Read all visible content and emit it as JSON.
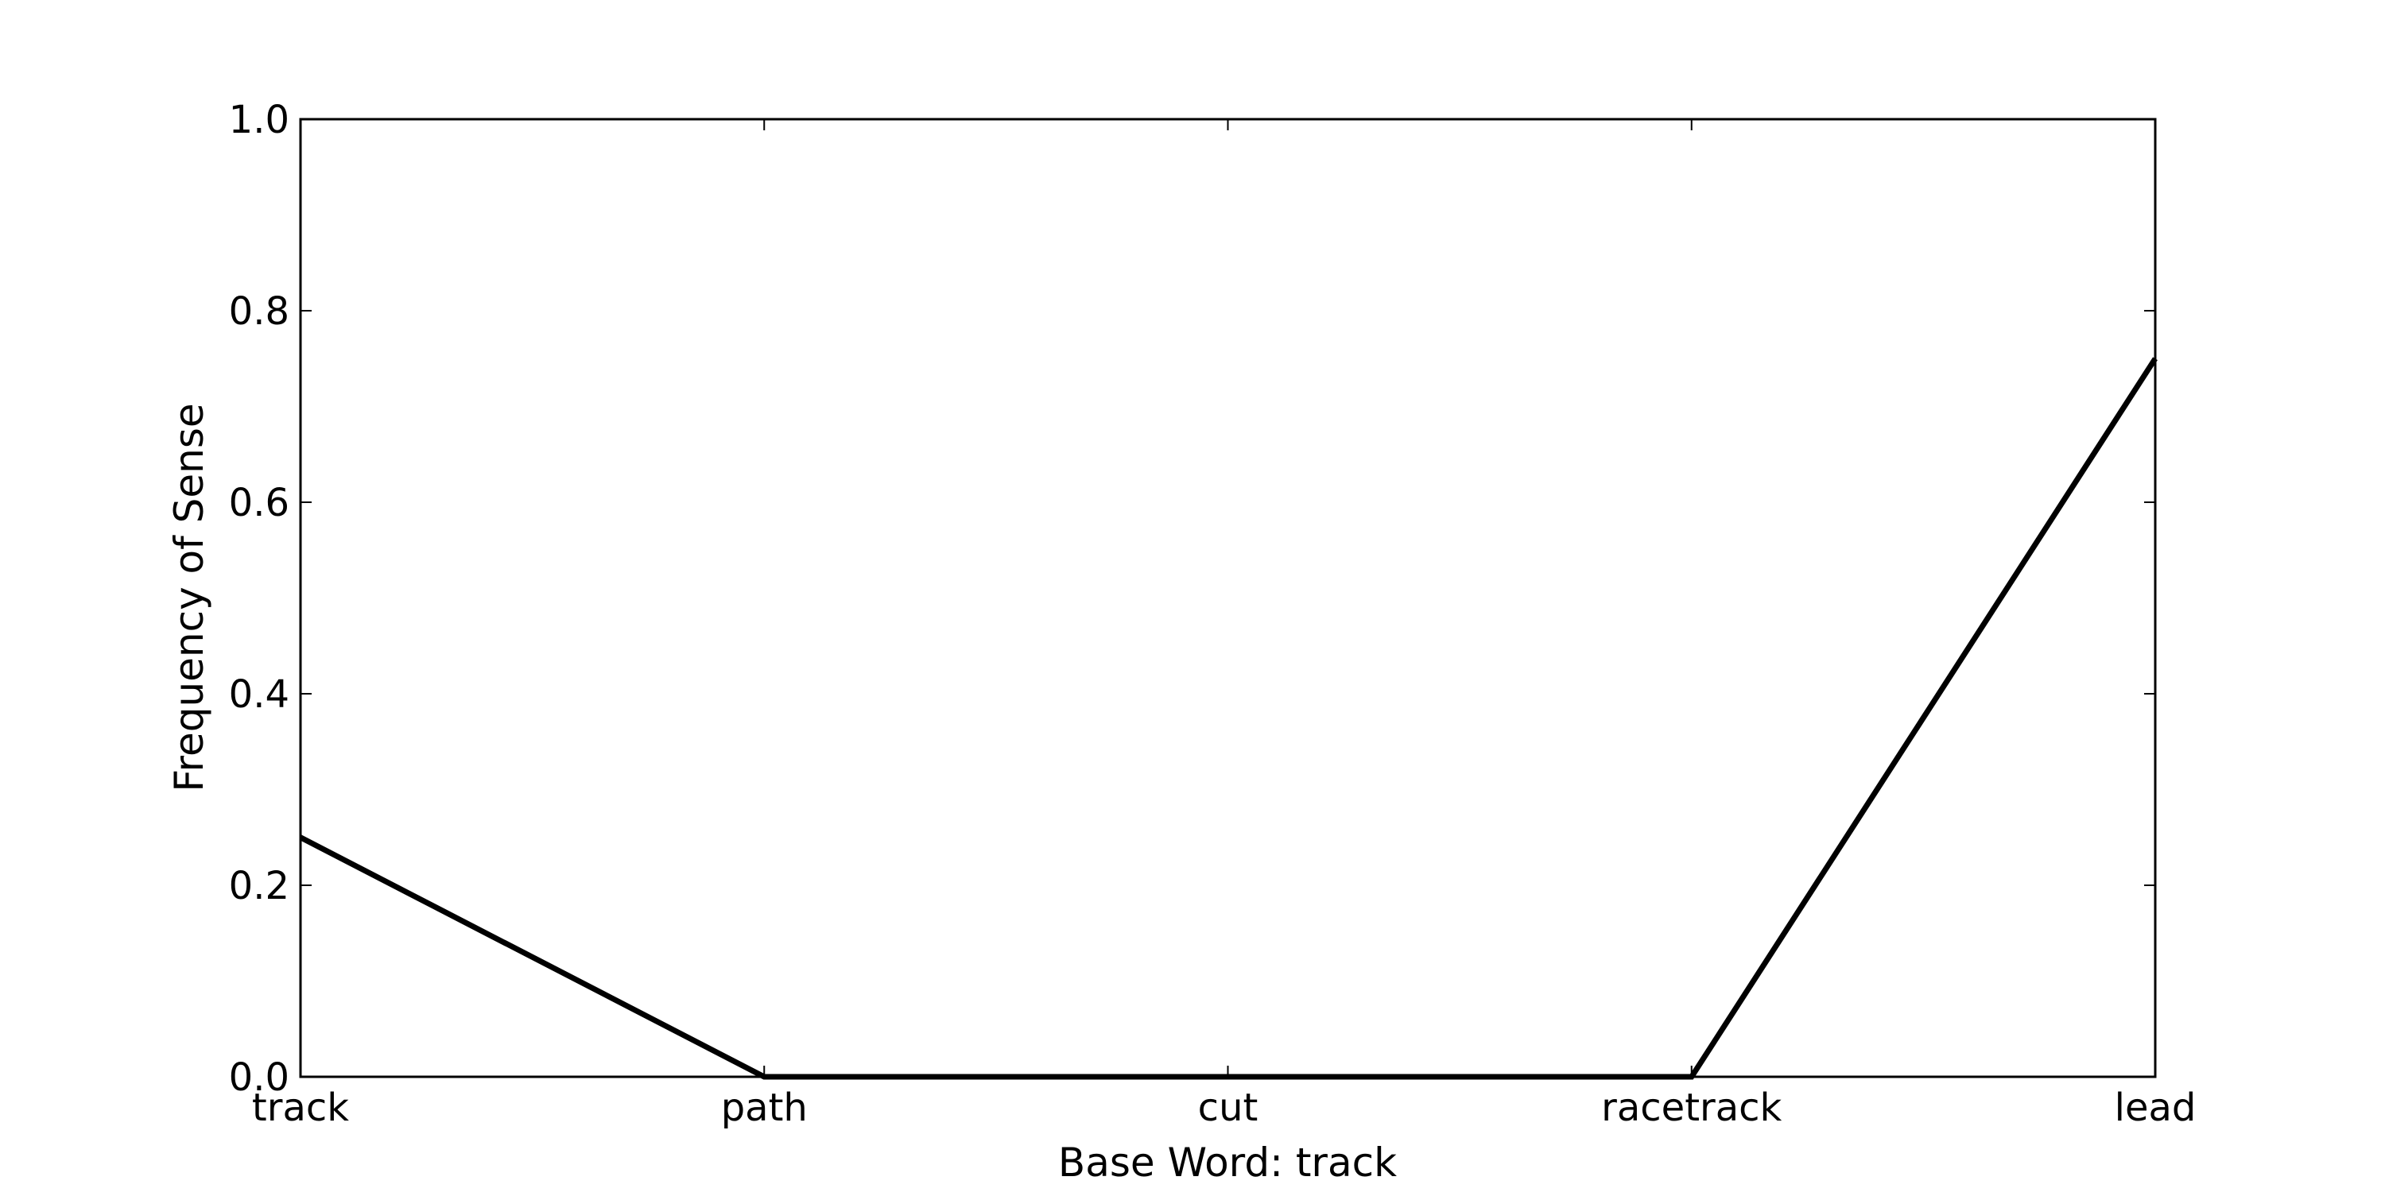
{
  "chart_data": {
    "type": "line",
    "categories": [
      "track",
      "path",
      "cut",
      "racetrack",
      "lead"
    ],
    "series": [
      {
        "values": [
          0.25,
          0.0,
          0.0,
          0.0,
          0.75
        ],
        "color": "#000000"
      }
    ],
    "xlabel": "Base Word: track",
    "ylabel": "Frequency of Sense",
    "ylim": [
      0.0,
      1.0
    ],
    "yticks": [
      "0.0",
      "0.2",
      "0.4",
      "0.6",
      "0.8",
      "1.0"
    ],
    "grid": false
  }
}
